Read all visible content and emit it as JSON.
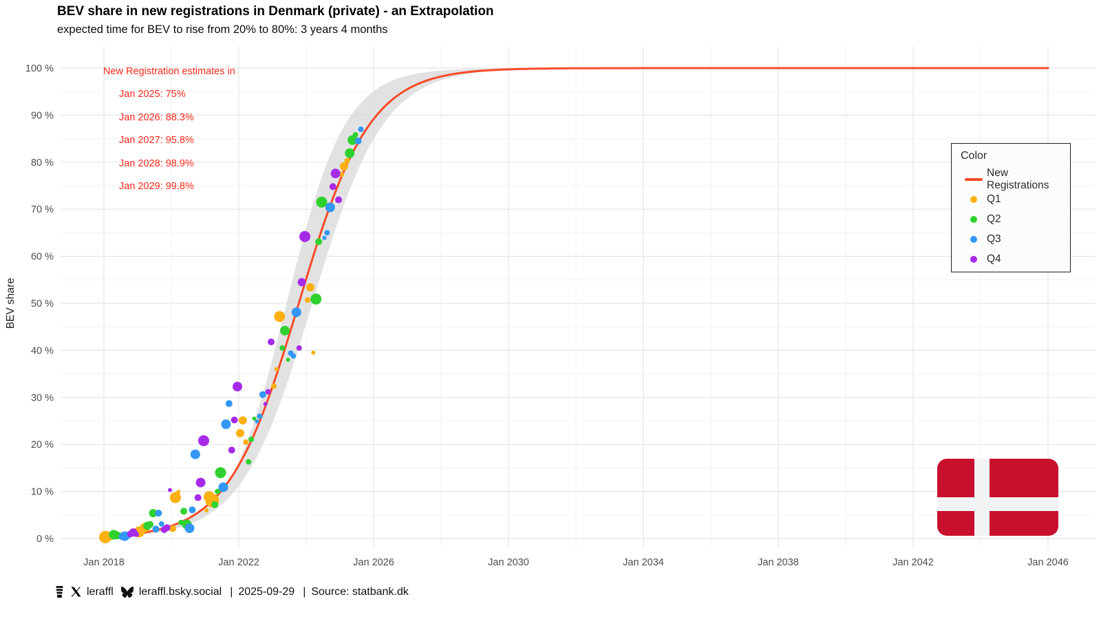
{
  "title": "BEV share in new registrations in Denmark (private) - an Extrapolation",
  "subtitle": "expected time for BEV to rise from 20% to 80%: 3 years 4 months",
  "annotation": {
    "color": "#FB2B1C",
    "header": "New Registration estimates in",
    "items": [
      "Jan 2025: 75%",
      "Jan 2026: 88.3%",
      "Jan 2027: 95.8%",
      "Jan 2028: 98.9%",
      "Jan 2029: 99.8%"
    ]
  },
  "legend": {
    "title": "Color",
    "line_item": {
      "label": "New Registrations",
      "color": "#FA4B28"
    },
    "items": [
      {
        "label": "Q1",
        "color": "#FDB011"
      },
      {
        "label": "Q2",
        "color": "#2FD12F"
      },
      {
        "label": "Q3",
        "color": "#3397F5"
      },
      {
        "label": "Q4",
        "color": "#A62BE8"
      }
    ]
  },
  "axes": {
    "y_label": "BEV share",
    "y_ticks": [
      {
        "v": 0,
        "label": "0 %"
      },
      {
        "v": 10,
        "label": "10 %"
      },
      {
        "v": 20,
        "label": "20 %"
      },
      {
        "v": 30,
        "label": "30 %"
      },
      {
        "v": 40,
        "label": "40 %"
      },
      {
        "v": 50,
        "label": "50 %"
      },
      {
        "v": 60,
        "label": "60 %"
      },
      {
        "v": 70,
        "label": "70 %"
      },
      {
        "v": 80,
        "label": "80 %"
      },
      {
        "v": 90,
        "label": "90 %"
      },
      {
        "v": 100,
        "label": "100 %"
      }
    ],
    "y_minor": [
      5,
      15,
      25,
      35,
      45,
      55,
      65,
      75,
      85,
      95
    ],
    "x_ticks": [
      {
        "year": 2018,
        "label": "Jan 2018"
      },
      {
        "year": 2022,
        "label": "Jan 2022"
      },
      {
        "year": 2026,
        "label": "Jan 2026"
      },
      {
        "year": 2030,
        "label": "Jan 2030"
      },
      {
        "year": 2034,
        "label": "Jan 2034"
      },
      {
        "year": 2038,
        "label": "Jan 2038"
      },
      {
        "year": 2042,
        "label": "Jan 2042"
      },
      {
        "year": 2046,
        "label": "Jan 2046"
      }
    ],
    "x_minor_years": [
      2020,
      2024,
      2028,
      2032,
      2036,
      2040,
      2044
    ]
  },
  "footer": {
    "handle": "leraffl",
    "bsky_handle": "leraffl.bsky.social",
    "separator": "|",
    "date": "2025-09-29",
    "source": "Source: statbank.dk"
  },
  "flag": {
    "red": "#C8102E",
    "white": "#F2F3F5"
  },
  "colors": {
    "grid_major": "#E4E4E4",
    "grid_minor": "#F1F1F1",
    "tick_text": "#4D4D4D",
    "axis_title": "#1A1A1A",
    "band": "#DADADA"
  },
  "chart_data": {
    "type": "scatter",
    "title": "BEV share in new registrations in Denmark (private) - an Extrapolation",
    "xlabel": "",
    "ylabel": "BEV share",
    "x_range_years": [
      2016.7,
      2047.4
    ],
    "ylim": [
      0,
      100
    ],
    "grid": true,
    "legend_position": "inset-right",
    "fit_line": {
      "model": "logistic",
      "L": 100,
      "k": 0.95,
      "t0": 2023.78,
      "draw_from": 2018.0,
      "draw_to": 2046.0,
      "label": "New Registrations"
    },
    "confidence_band": {
      "k_upper": 1.15,
      "t0_upper": 2023.42,
      "k_lower": 0.95,
      "t0_lower": 2024.18,
      "opacity": 0.78,
      "draw_from": 2018.6,
      "draw_to": 2034.0
    },
    "estimates": [
      {
        "date": "Jan 2025",
        "value": 75
      },
      {
        "date": "Jan 2026",
        "value": 88.3
      },
      {
        "date": "Jan 2027",
        "value": 95.8
      },
      {
        "date": "Jan 2028",
        "value": 98.9
      },
      {
        "date": "Jan 2029",
        "value": 99.8
      }
    ],
    "point_format": [
      "year_fraction",
      "bev_share_pct",
      "radius_px"
    ],
    "series": [
      {
        "name": "Q1",
        "points": [
          [
            2018.04,
            0.3,
            9
          ],
          [
            2018.12,
            0.4,
            7
          ],
          [
            2018.21,
            0.5,
            5
          ],
          [
            2019.04,
            1.4,
            8
          ],
          [
            2019.12,
            1.7,
            6
          ],
          [
            2019.21,
            2.3,
            7
          ],
          [
            2020.04,
            2.1,
            5
          ],
          [
            2020.12,
            8.7,
            8
          ],
          [
            2020.21,
            9.9,
            3
          ],
          [
            2021.04,
            6.0,
            3
          ],
          [
            2021.12,
            8.9,
            8
          ],
          [
            2021.21,
            8.1,
            10
          ],
          [
            2022.04,
            22.4,
            6
          ],
          [
            2022.12,
            25.1,
            6
          ],
          [
            2022.21,
            20.5,
            4
          ],
          [
            2023.04,
            32.4,
            4
          ],
          [
            2023.12,
            36.0,
            3
          ],
          [
            2023.21,
            47.2,
            8
          ],
          [
            2024.04,
            50.7,
            4
          ],
          [
            2024.12,
            53.4,
            6
          ],
          [
            2024.21,
            39.5,
            3
          ],
          [
            2025.04,
            77.4,
            4
          ],
          [
            2025.12,
            79.1,
            6
          ],
          [
            2025.21,
            80.3,
            4
          ]
        ]
      },
      {
        "name": "Q2",
        "points": [
          [
            2018.29,
            0.8,
            7
          ],
          [
            2018.37,
            0.7,
            6
          ],
          [
            2018.46,
            0.6,
            5
          ],
          [
            2019.29,
            2.7,
            6
          ],
          [
            2019.37,
            3.0,
            5
          ],
          [
            2019.46,
            5.4,
            6
          ],
          [
            2020.29,
            3.4,
            4
          ],
          [
            2020.37,
            5.8,
            5
          ],
          [
            2020.46,
            3.0,
            7
          ],
          [
            2021.29,
            7.2,
            5
          ],
          [
            2021.37,
            10.0,
            4
          ],
          [
            2021.46,
            14.0,
            8
          ],
          [
            2022.29,
            16.3,
            4
          ],
          [
            2022.37,
            21.1,
            4
          ],
          [
            2022.46,
            25.5,
            3
          ],
          [
            2023.29,
            40.5,
            4
          ],
          [
            2023.37,
            44.2,
            7
          ],
          [
            2023.46,
            38.0,
            3
          ],
          [
            2024.29,
            50.9,
            8
          ],
          [
            2024.37,
            63.1,
            5
          ],
          [
            2024.46,
            71.5,
            8
          ],
          [
            2025.29,
            81.9,
            7
          ],
          [
            2025.37,
            84.7,
            7
          ],
          [
            2025.46,
            85.8,
            4
          ]
        ]
      },
      {
        "name": "Q3",
        "points": [
          [
            2018.54,
            0.4,
            5
          ],
          [
            2018.62,
            0.5,
            7
          ],
          [
            2018.71,
            0.7,
            5
          ],
          [
            2019.54,
            2.0,
            5
          ],
          [
            2019.62,
            5.4,
            5
          ],
          [
            2019.71,
            3.1,
            4
          ],
          [
            2020.54,
            2.2,
            7
          ],
          [
            2020.62,
            6.1,
            5
          ],
          [
            2020.71,
            17.9,
            7
          ],
          [
            2021.54,
            10.9,
            7
          ],
          [
            2021.62,
            24.3,
            7
          ],
          [
            2021.71,
            28.7,
            5
          ],
          [
            2022.54,
            24.9,
            3
          ],
          [
            2022.62,
            26.0,
            4
          ],
          [
            2022.71,
            30.6,
            5
          ],
          [
            2023.54,
            39.4,
            4
          ],
          [
            2023.62,
            38.8,
            4
          ],
          [
            2023.71,
            48.1,
            7
          ],
          [
            2024.54,
            63.9,
            3
          ],
          [
            2024.62,
            65.0,
            4
          ],
          [
            2024.71,
            70.4,
            7
          ],
          [
            2025.54,
            84.5,
            5
          ],
          [
            2025.62,
            87.0,
            4
          ]
        ]
      },
      {
        "name": "Q4",
        "points": [
          [
            2018.79,
            1.0,
            5
          ],
          [
            2018.87,
            1.3,
            6
          ],
          [
            2018.96,
            0.9,
            4
          ],
          [
            2019.79,
            1.9,
            5
          ],
          [
            2019.87,
            2.3,
            5
          ],
          [
            2019.96,
            10.3,
            3
          ],
          [
            2020.79,
            8.7,
            5
          ],
          [
            2020.87,
            11.9,
            7
          ],
          [
            2020.96,
            20.8,
            8
          ],
          [
            2021.79,
            18.8,
            5
          ],
          [
            2021.87,
            25.2,
            5
          ],
          [
            2021.96,
            32.3,
            7
          ],
          [
            2022.79,
            28.6,
            3
          ],
          [
            2022.87,
            31.2,
            4
          ],
          [
            2022.96,
            41.8,
            5
          ],
          [
            2023.79,
            40.5,
            4
          ],
          [
            2023.87,
            54.5,
            6
          ],
          [
            2023.96,
            64.2,
            8
          ],
          [
            2024.79,
            74.8,
            5
          ],
          [
            2024.87,
            77.6,
            7
          ],
          [
            2024.96,
            72.0,
            5
          ]
        ]
      }
    ]
  }
}
